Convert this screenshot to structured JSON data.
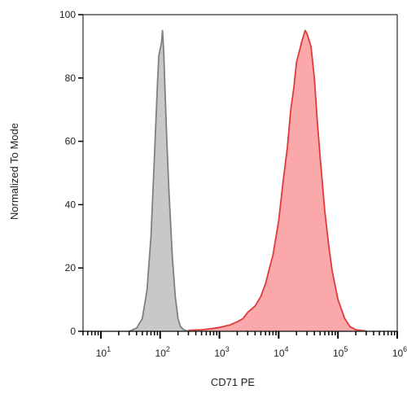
{
  "chart_data": {
    "type": "area",
    "xlabel": "CD71 PE",
    "ylabel": "Normalized To Mode",
    "x_scale": "log",
    "xlim": [
      5,
      1000000
    ],
    "ylim": [
      0,
      100
    ],
    "x_ticks": [
      {
        "base": "10",
        "exp": "1",
        "value": 10
      },
      {
        "base": "10",
        "exp": "2",
        "value": 100
      },
      {
        "base": "10",
        "exp": "3",
        "value": 1000
      },
      {
        "base": "10",
        "exp": "4",
        "value": 10000
      },
      {
        "base": "10",
        "exp": "5",
        "value": 100000
      },
      {
        "base": "10",
        "exp": "6",
        "value": 1000000
      }
    ],
    "y_ticks": [
      {
        "label": "0",
        "value": 0
      },
      {
        "label": "20",
        "value": 20
      },
      {
        "label": "40",
        "value": 40
      },
      {
        "label": "60",
        "value": 60
      },
      {
        "label": "80",
        "value": 80
      },
      {
        "label": "100",
        "value": 100
      }
    ],
    "grid": false,
    "legend": "none",
    "series": [
      {
        "color": "#808080",
        "fill": "#c8c8c8",
        "x": [
          30,
          40,
          50,
          60,
          70,
          80,
          90,
          95,
          100,
          105,
          110,
          115,
          120,
          130,
          140,
          160,
          180,
          200,
          220,
          250,
          280,
          320
        ],
        "y": [
          0,
          1,
          4,
          13,
          30,
          55,
          78,
          87,
          89,
          91,
          95,
          88,
          78,
          60,
          45,
          24,
          11,
          4,
          1.5,
          0.5,
          0.2,
          0
        ]
      },
      {
        "color": "#e03a3a",
        "fill": "#fba8ab",
        "x": [
          300,
          500,
          700,
          1000,
          1500,
          2000,
          2500,
          3000,
          4000,
          5000,
          6000,
          7000,
          8000,
          10000,
          12000,
          14000,
          16000,
          18000,
          20000,
          22000,
          25000,
          28000,
          30000,
          35000,
          40000,
          45000,
          50000,
          60000,
          70000,
          80000,
          100000,
          130000,
          160000,
          200000,
          300000
        ],
        "y": [
          0.3,
          0.5,
          0.8,
          1.2,
          2,
          3,
          4,
          6,
          8,
          11,
          15,
          20,
          24,
          35,
          48,
          58,
          70,
          77,
          85,
          88,
          92,
          95,
          94,
          90,
          80,
          66,
          55,
          38,
          27,
          19,
          10,
          4,
          1.5,
          0.5,
          0.1
        ]
      }
    ]
  }
}
